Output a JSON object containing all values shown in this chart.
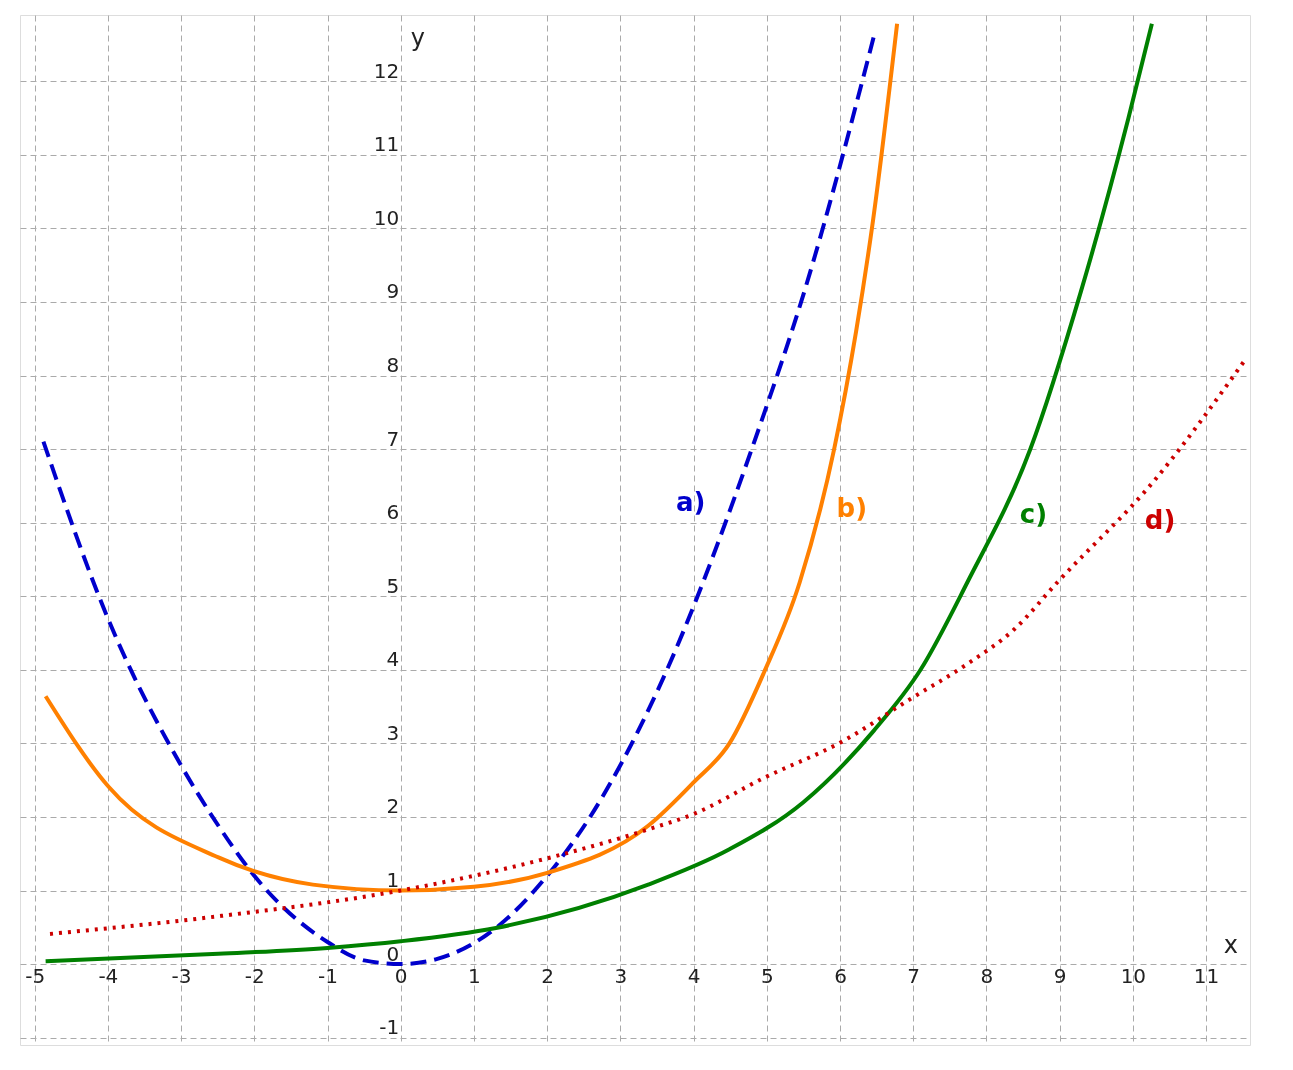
{
  "chart_data": {
    "type": "line",
    "xlabel": "x",
    "ylabel": "y",
    "xlim": [
      -5.2,
      11.6
    ],
    "ylim": [
      -1.1,
      12.9
    ],
    "xticks": [
      -5,
      -4,
      -3,
      -2,
      -1,
      0,
      1,
      2,
      3,
      4,
      5,
      6,
      7,
      8,
      9,
      10,
      11
    ],
    "yticks": [
      -1,
      0,
      1,
      2,
      3,
      4,
      5,
      6,
      7,
      8,
      9,
      10,
      11,
      12
    ],
    "grid": true,
    "marker": "none",
    "series": [
      {
        "name": "a)",
        "color": "#0000cc",
        "line_style": "dashed",
        "x": [
          -4.88,
          -4,
          -3,
          -2.49,
          -2,
          -1,
          -0.5,
          0,
          0.5,
          1.3,
          2,
          2.58,
          3.5,
          4.91,
          5.5,
          6.46
        ],
        "values": [
          7.1,
          4.7,
          2.7,
          1.88,
          1.2,
          0.3,
          0.05,
          0,
          0.07,
          0.49,
          1.2,
          1.99,
          3.7,
          7.33,
          9.1,
          12.6
        ]
      },
      {
        "name": "b)",
        "color": "#ff8000",
        "line_style": "solid",
        "x": [
          -4.85,
          -3.99,
          -2.49,
          -1.2,
          0,
          1,
          2,
          3.38,
          4,
          4.49,
          4.96,
          5.45,
          5.92,
          6.22,
          6.45,
          6.78
        ],
        "values": [
          3.64,
          2.41,
          1.45,
          1.08,
          1,
          1.05,
          1.24,
          1.88,
          2.47,
          3.0,
          3.96,
          5.19,
          7.0,
          8.6,
          10.1,
          12.78
        ]
      },
      {
        "name": "c)",
        "color": "#008000",
        "line_style": "solid",
        "x": [
          -4.85,
          -2.49,
          -1,
          0,
          1.3,
          3.38,
          4.49,
          5.5,
          6.46,
          7.1,
          7.74,
          8.6,
          9.29,
          9.94,
          10.26
        ],
        "values": [
          0.04,
          0.14,
          0.22,
          0.31,
          0.49,
          1.08,
          1.56,
          2.2,
          3.17,
          4.0,
          5.19,
          7.0,
          9.14,
          11.5,
          12.78
        ]
      },
      {
        "name": "d)",
        "color": "#cc0000",
        "line_style": "dotted",
        "x": [
          -4.79,
          -2.49,
          0,
          2.05,
          3.38,
          4,
          4.96,
          6.04,
          6.94,
          7.74,
          8.38,
          8.97,
          10.3,
          11.51
        ],
        "values": [
          0.41,
          0.65,
          1.0,
          1.45,
          1.83,
          2.04,
          2.53,
          3.03,
          3.59,
          4.08,
          4.55,
          5.19,
          6.58,
          8.18
        ]
      }
    ]
  }
}
